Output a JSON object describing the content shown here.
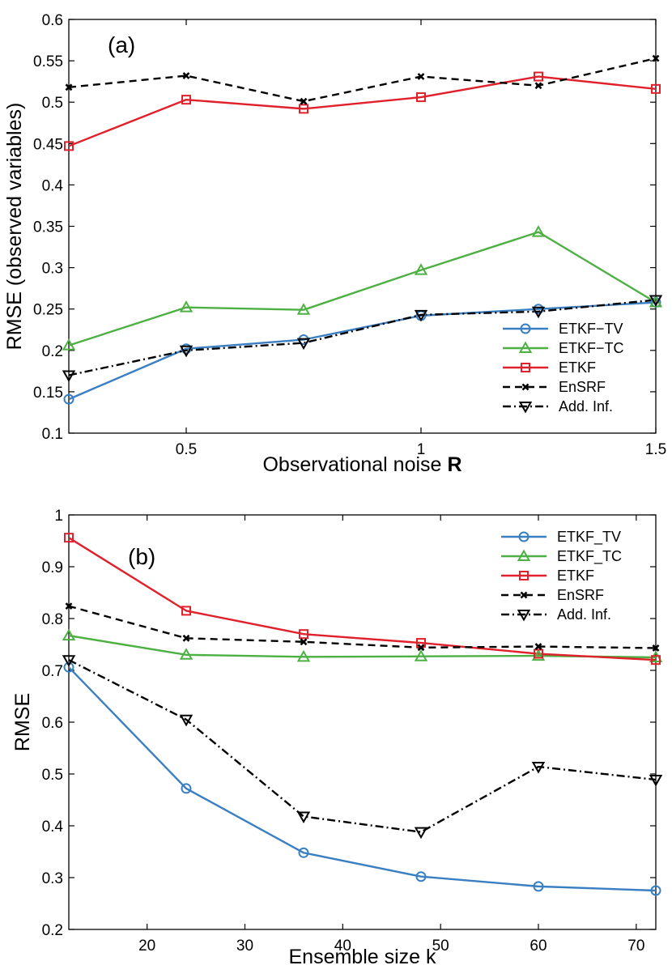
{
  "chart_data": [
    {
      "type": "line",
      "panel_label": "(a)",
      "xlabel": "Observational noise",
      "xlabel_bold": "R",
      "ylabel": "RMSE (observed variables)",
      "xlim": [
        0.25,
        1.5
      ],
      "ylim": [
        0.1,
        0.6
      ],
      "xticks": [
        0.5,
        1,
        1.5
      ],
      "xtick_labels": [
        "0.5",
        "1",
        "1.5"
      ],
      "yticks": [
        0.1,
        0.15,
        0.2,
        0.25,
        0.3,
        0.35,
        0.4,
        0.45,
        0.5,
        0.55,
        0.6
      ],
      "ytick_labels": [
        "0.1",
        "0.15",
        "0.2",
        "0.25",
        "0.3",
        "0.35",
        "0.4",
        "0.45",
        "0.5",
        "0.55",
        "0.6"
      ],
      "legend_position": "bottom-right",
      "x": [
        0.25,
        0.5,
        0.75,
        1.0,
        1.25,
        1.5
      ],
      "series": [
        {
          "name": "ETKF−TV",
          "key": "etkf-tv",
          "color": "#3a7fc1",
          "marker": "circle",
          "dash": "",
          "values": [
            0.141,
            0.202,
            0.213,
            0.242,
            0.25,
            0.258
          ]
        },
        {
          "name": "ETKF−TC",
          "key": "etkf-tc",
          "color": "#4db043",
          "marker": "triangle-up",
          "dash": "",
          "values": [
            0.206,
            0.252,
            0.249,
            0.297,
            0.343,
            0.258
          ]
        },
        {
          "name": "ETKF",
          "key": "etkf",
          "color": "#e0202a",
          "marker": "square",
          "dash": "",
          "values": [
            0.447,
            0.503,
            0.492,
            0.506,
            0.531,
            0.516
          ]
        },
        {
          "name": "EnSRF",
          "key": "ensrf",
          "color": "#000000",
          "marker": "x",
          "dash": "9,6",
          "values": [
            0.518,
            0.532,
            0.501,
            0.531,
            0.52,
            0.553
          ]
        },
        {
          "name": "Add. Inf.",
          "key": "add-inf",
          "color": "#000000",
          "marker": "triangle-down",
          "dash": "10,4,2,4",
          "values": [
            0.17,
            0.2,
            0.209,
            0.243,
            0.247,
            0.261
          ]
        }
      ]
    },
    {
      "type": "line",
      "panel_label": "(b)",
      "xlabel": "Ensemble size k",
      "xlabel_bold": "",
      "ylabel": "RMSE",
      "xlim": [
        12,
        72
      ],
      "ylim": [
        0.2,
        1.0
      ],
      "xticks": [
        20,
        30,
        40,
        50,
        60,
        70
      ],
      "xtick_labels": [
        "20",
        "30",
        "40",
        "50",
        "60",
        "70"
      ],
      "yticks": [
        0.2,
        0.3,
        0.4,
        0.5,
        0.6,
        0.7,
        0.8,
        0.9,
        1.0
      ],
      "ytick_labels": [
        "0.2",
        "0.3",
        "0.4",
        "0.5",
        "0.6",
        "0.7",
        "0.8",
        "0.9",
        "1"
      ],
      "legend_position": "top-right",
      "x": [
        12,
        24,
        36,
        48,
        60,
        72
      ],
      "series": [
        {
          "name": "ETKF_TV",
          "key": "etkf-tv",
          "color": "#3a7fc1",
          "marker": "circle",
          "dash": "",
          "values": [
            0.706,
            0.472,
            0.348,
            0.302,
            0.283,
            0.275
          ]
        },
        {
          "name": "ETKF_TC",
          "key": "etkf-tc",
          "color": "#4db043",
          "marker": "triangle-up",
          "dash": "",
          "values": [
            0.767,
            0.73,
            0.726,
            0.727,
            0.728,
            0.725
          ]
        },
        {
          "name": "ETKF",
          "key": "etkf",
          "color": "#e0202a",
          "marker": "square",
          "dash": "",
          "values": [
            0.956,
            0.815,
            0.77,
            0.753,
            0.732,
            0.72
          ]
        },
        {
          "name": "EnSRF",
          "key": "ensrf",
          "color": "#000000",
          "marker": "x",
          "dash": "9,6",
          "values": [
            0.824,
            0.762,
            0.755,
            0.744,
            0.746,
            0.743
          ]
        },
        {
          "name": "Add. Inf.",
          "key": "add-inf",
          "color": "#000000",
          "marker": "triangle-down",
          "dash": "10,4,2,4",
          "values": [
            0.72,
            0.605,
            0.418,
            0.388,
            0.514,
            0.489
          ]
        }
      ]
    }
  ]
}
